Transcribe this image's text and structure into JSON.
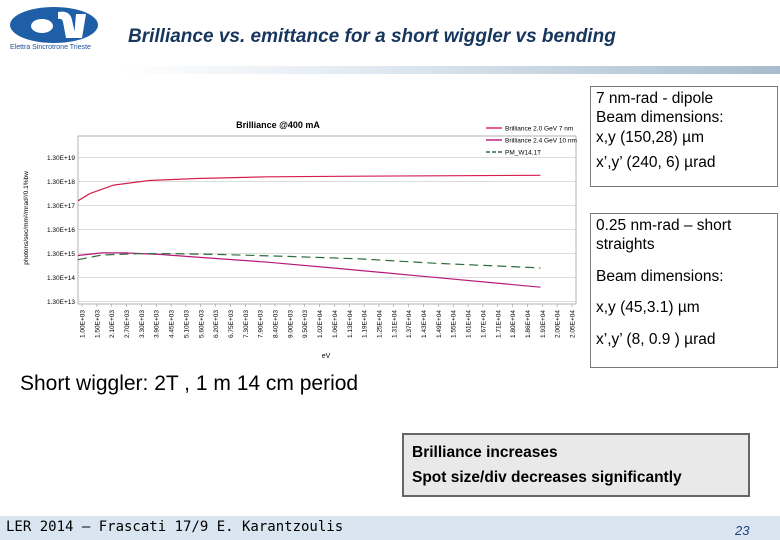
{
  "header": {
    "logo_text": "Elettra Sincrotrone Trieste",
    "title": "Brilliance vs. emittance for a short wiggler vs bending"
  },
  "chart_data": {
    "type": "line",
    "title": "Brilliance @400 mA",
    "xlabel": "eV",
    "ylabel": "photons/sec/mm²/mrad²/0.1%bw",
    "yscale": "log",
    "ylim": [
      10000000000000.0,
      1e+20
    ],
    "xlim": [
      1000,
      22000
    ],
    "grid": true,
    "legend_position": "top-right",
    "y_ticks": [
      "1.30E+13",
      "1.30E+14",
      "1.30E+15",
      "1.30E+16",
      "1.30E+17",
      "1.30E+18",
      "1.30E+19"
    ],
    "x_ticks": [
      "1.00E+03",
      "1.50E+03",
      "2.10E+03",
      "2.70E+03",
      "3.30E+03",
      "3.90E+03",
      "4.45E+03",
      "5.10E+03",
      "5.60E+03",
      "6.20E+03",
      "6.75E+03",
      "7.30E+03",
      "7.90E+03",
      "8.40E+03",
      "9.00E+03",
      "9.50E+03",
      "1.02E+04",
      "1.06E+04",
      "1.13E+04",
      "1.19E+04",
      "1.25E+04",
      "1.31E+04",
      "1.37E+04",
      "1.43E+04",
      "1.49E+04",
      "1.55E+04",
      "1.61E+04",
      "1.67E+04",
      "1.71E+04",
      "1.80E+04",
      "1.86E+04",
      "1.93E+04",
      "2.00E+04",
      "2.05E+04"
    ],
    "series": [
      {
        "name": "Brilliance 2.0 GeV 7 nm",
        "color": "#d61f4f",
        "dash": "solid",
        "x": [
          1000,
          1500,
          2500,
          4000,
          6000,
          9000,
          12000,
          16000,
          20500
        ],
        "y": [
          2e+17,
          4e+17,
          9e+17,
          1.4e+18,
          1.7e+18,
          2e+18,
          2.1e+18,
          2.2e+18,
          2.3e+18
        ]
      },
      {
        "name": "Brilliance 2.4 GeV 10 nm",
        "color": "#b51a7a",
        "dash": "solid",
        "x": [
          1000,
          2000,
          3000,
          4500,
          6000,
          9000,
          12000,
          16000,
          20500
        ],
        "y": [
          1050000000000000.0,
          1350000000000000.0,
          1350000000000000.0,
          1150000000000000.0,
          900000000000000.0,
          550000000000000.0,
          300000000000000.0,
          130000000000000.0,
          50000000000000.0
        ]
      },
      {
        "name": "PM_W14.1T",
        "color": "#2e6e3e",
        "dash": "dashed",
        "x": [
          1000,
          2000,
          3500,
          5000,
          7000,
          10000,
          13000,
          16000,
          20500
        ],
        "y": [
          700000000000000.0,
          1100000000000000.0,
          1250000000000000.0,
          1250000000000000.0,
          1150000000000000.0,
          950000000000000.0,
          750000000000000.0,
          500000000000000.0,
          320000000000000.0
        ]
      }
    ]
  },
  "info_box_dipole": {
    "line1": "7 nm-rad - dipole",
    "line2": "Beam dimensions:",
    "line3": "x,y (150,28) µm",
    "line4": "x’,y’ (240, 6) µrad"
  },
  "info_box_wiggler": {
    "line1": "0.25 nm-rad – short",
    "line2": "straights",
    "line3": "Beam dimensions:",
    "line4": "x,y (45,3.1) µm",
    "line5": "x’,y’ (8, 0.9 ) µrad"
  },
  "wiggler_note": "Short wiggler: 2T , 1 m 14 cm period",
  "conclusion": {
    "line1": "Brilliance increases",
    "line2": "Spot size/div  decreases significantly"
  },
  "footer": {
    "text": "LER 2014 – Frascati 17/9   E. Karantzoulis",
    "page": "23"
  }
}
